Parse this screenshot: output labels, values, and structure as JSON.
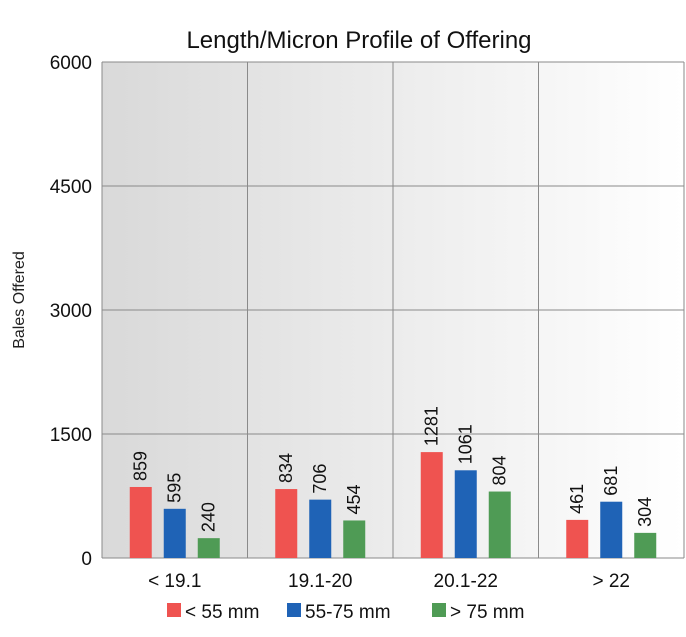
{
  "chart_data": {
    "type": "bar",
    "title": "Length/Micron Profile of Offering",
    "xlabel": "",
    "ylabel": "Bales Offered",
    "categories": [
      "< 19.1",
      "19.1-20",
      "20.1-22",
      "> 22"
    ],
    "series": [
      {
        "name": "< 55 mm",
        "values": [
          859,
          834,
          1281,
          461
        ],
        "color": "#ef5350"
      },
      {
        "name": "55-75 mm",
        "values": [
          595,
          706,
          1061,
          681
        ],
        "color": "#1f63b6"
      },
      {
        "name": "> 75 mm",
        "values": [
          240,
          454,
          804,
          304
        ],
        "color": "#4f9b55"
      }
    ],
    "yticks": [
      "0",
      "1500",
      "3000",
      "4500",
      "6000"
    ],
    "ylim": [
      0,
      6000
    ],
    "grid": true,
    "legend_position": "bottom",
    "background_gradient": [
      "#d9d9d9",
      "#ffffff"
    ]
  }
}
